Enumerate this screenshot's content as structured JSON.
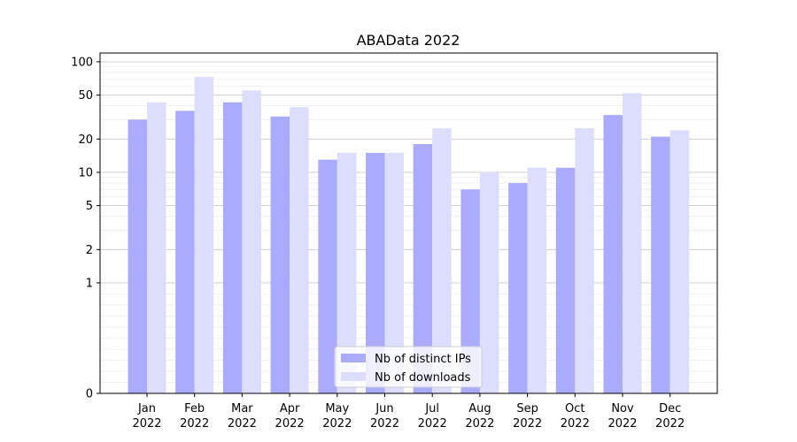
{
  "chart_data": {
    "type": "bar",
    "title": "ABAData 2022",
    "xlabel": "",
    "ylabel": "",
    "yscale": "symlog",
    "ylim": [
      0,
      120
    ],
    "yticks": [
      0,
      1,
      2,
      5,
      10,
      20,
      50,
      100
    ],
    "grid": "horizontal",
    "legend_position": "bottom-center",
    "categories": [
      [
        "Jan",
        "2022"
      ],
      [
        "Feb",
        "2022"
      ],
      [
        "Mar",
        "2022"
      ],
      [
        "Apr",
        "2022"
      ],
      [
        "May",
        "2022"
      ],
      [
        "Jun",
        "2022"
      ],
      [
        "Jul",
        "2022"
      ],
      [
        "Aug",
        "2022"
      ],
      [
        "Sep",
        "2022"
      ],
      [
        "Oct",
        "2022"
      ],
      [
        "Nov",
        "2022"
      ],
      [
        "Dec",
        "2022"
      ]
    ],
    "series": [
      {
        "name": "Nb of distinct IPs",
        "color": "#aaaaff",
        "values": [
          30,
          36,
          43,
          32,
          13,
          15,
          18,
          7,
          8,
          11,
          33,
          21
        ]
      },
      {
        "name": "Nb of downloads",
        "color": "#ddddff",
        "values": [
          43,
          73,
          55,
          39,
          15,
          15,
          25,
          10,
          11,
          25,
          52,
          24
        ]
      }
    ]
  }
}
